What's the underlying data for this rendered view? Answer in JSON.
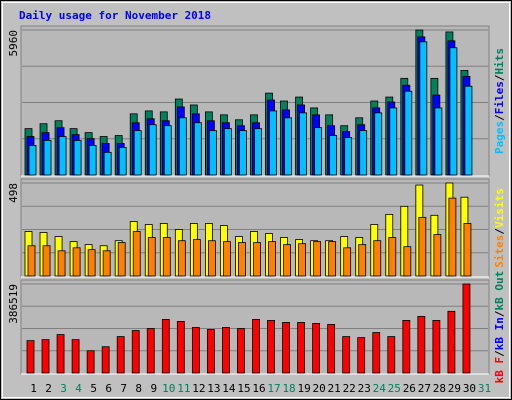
{
  "legend_separator": "/",
  "chart_data": [
    {
      "type": "bar",
      "title": "Daily usage for November 2018",
      "ylim": [
        0,
        5960
      ],
      "yticks": [
        5960
      ],
      "frame": [
        26,
        176
      ],
      "series": [
        {
          "name": "Pages",
          "color": "#00c0ff",
          "values": [
            1216,
            1419,
            1581,
            1419,
            1216,
            932,
            1135,
            1824,
            2068,
            2027,
            2351,
            2149,
            1824,
            1905,
            1824,
            1905,
            2635,
            2351,
            2554,
            1946,
            1622,
            1541,
            1824,
            2554,
            2757,
            3446,
            5473,
            2757,
            5230,
            3649,
            0
          ]
        },
        {
          "name": "Files",
          "color": "#0000ff",
          "values": [
            1581,
            1743,
            1946,
            1662,
            1500,
            1297,
            1297,
            2149,
            2311,
            2230,
            2797,
            2514,
            2230,
            2149,
            2027,
            2149,
            3081,
            2676,
            2878,
            2473,
            2027,
            1784,
            2068,
            2757,
            3000,
            3689,
            5676,
            3284,
            5514,
            4054,
            0
          ]
        },
        {
          "name": "Hits",
          "color": "#00805c",
          "values": [
            1906,
            2108,
            2230,
            1906,
            1743,
            1581,
            1622,
            2514,
            2635,
            2595,
            3122,
            2878,
            2595,
            2473,
            2270,
            2473,
            3365,
            3041,
            3203,
            2757,
            2473,
            2027,
            2351,
            3041,
            3203,
            3973,
            5960,
            3973,
            5880,
            4297,
            0
          ]
        }
      ]
    },
    {
      "type": "bar",
      "ylim": [
        0,
        498
      ],
      "yticks": [
        498
      ],
      "frame": [
        179,
        277
      ],
      "series": [
        {
          "name": "Sites",
          "color": "#ff8000",
          "values": [
            162,
            162,
            135,
            151,
            141,
            135,
            179,
            238,
            206,
            206,
            189,
            195,
            189,
            184,
            179,
            179,
            184,
            168,
            173,
            184,
            184,
            151,
            168,
            189,
            206,
            157,
            314,
            222,
            417,
            281,
            0
          ]
        },
        {
          "name": "Visits",
          "color": "#ffff00",
          "values": [
            238,
            233,
            211,
            184,
            168,
            162,
            189,
            292,
            276,
            281,
            249,
            281,
            281,
            270,
            211,
            238,
            227,
            206,
            195,
            189,
            189,
            211,
            206,
            276,
            330,
            373,
            487,
            325,
            498,
            422,
            0
          ]
        }
      ]
    },
    {
      "type": "bar",
      "ylim": [
        0,
        386519
      ],
      "yticks": [
        386519
      ],
      "frame": [
        280,
        374
      ],
      "categories": [
        "1",
        "2",
        "3",
        "4",
        "5",
        "6",
        "7",
        "8",
        "9",
        "10",
        "11",
        "12",
        "13",
        "14",
        "15",
        "16",
        "17",
        "18",
        "19",
        "20",
        "21",
        "22",
        "23",
        "24",
        "25",
        "26",
        "27",
        "28",
        "29",
        "30",
        "31"
      ],
      "category_colors": [
        "#000000",
        "#000000",
        "#00805c",
        "#00805c",
        "#000000",
        "#000000",
        "#000000",
        "#000000",
        "#000000",
        "#00805c",
        "#00805c",
        "#000000",
        "#000000",
        "#000000",
        "#000000",
        "#000000",
        "#00805c",
        "#00805c",
        "#000000",
        "#000000",
        "#000000",
        "#000000",
        "#000000",
        "#00805c",
        "#00805c",
        "#000000",
        "#000000",
        "#000000",
        "#000000",
        "#000000",
        "#00805c"
      ],
      "series": [
        {
          "name": "kB F",
          "color": "#ff0000",
          "values": [
            140544,
            144936,
            166896,
            144936,
            96624,
            114192,
            158112,
            184464,
            193248,
            232776,
            223992,
            197640,
            188856,
            197640,
            193248,
            232776,
            228384,
            219600,
            219600,
            215208,
            210816,
            158112,
            153720,
            175680,
            158112,
            228384,
            245952,
            228384,
            267912,
            386519,
            0
          ]
        }
      ],
      "legend_only": [
        {
          "name": "kB In",
          "color": "#0000ff"
        },
        {
          "name": "kB Out",
          "color": "#00805c"
        }
      ]
    }
  ]
}
